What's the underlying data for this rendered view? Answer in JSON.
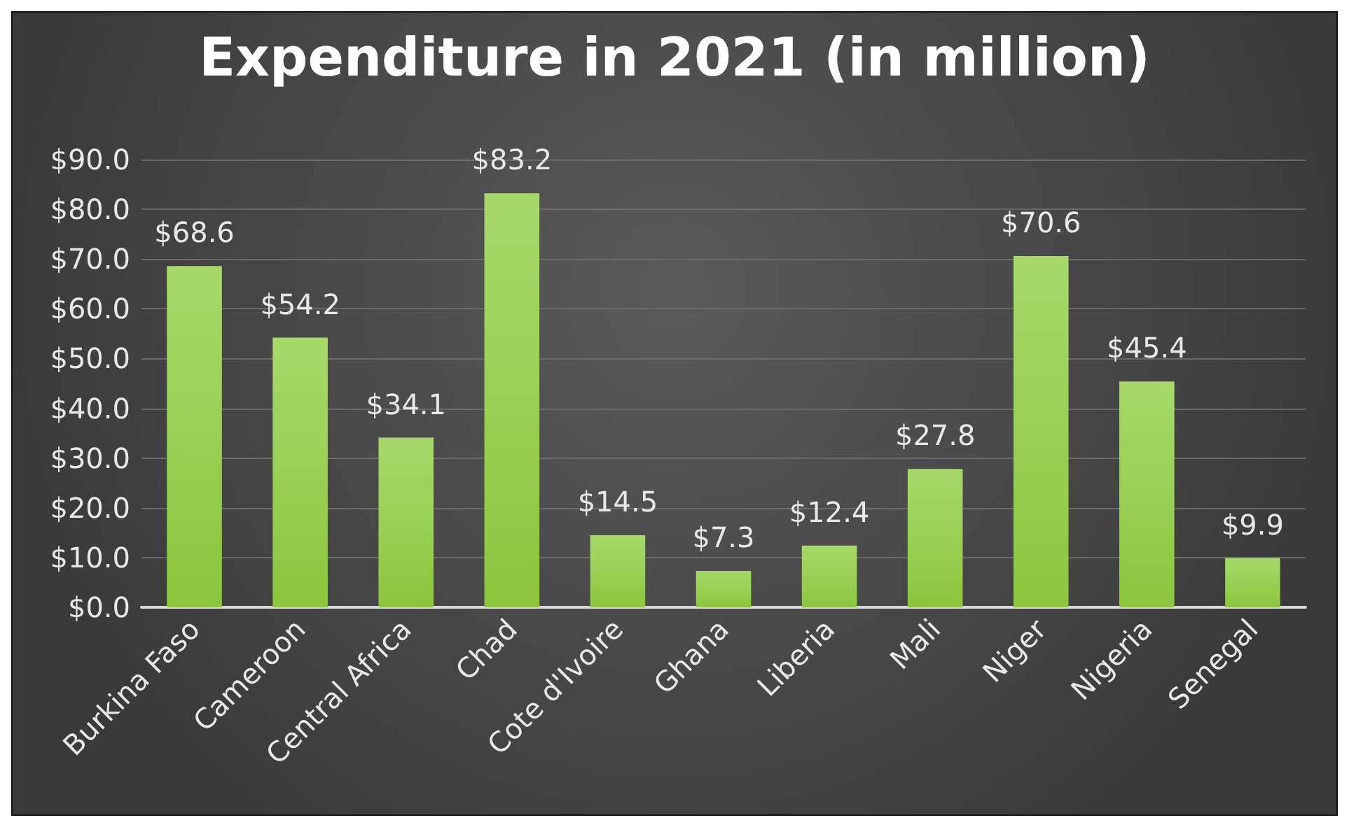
{
  "chart_data": {
    "type": "bar",
    "title": "Expenditure in 2021 (in million)",
    "categories": [
      "Burkina Faso",
      "Cameroon",
      "Central Africa",
      "Chad",
      "Cote d'Ivoire",
      "Ghana",
      "Liberia",
      "Mali",
      "Niger",
      "Nigeria",
      "Senegal"
    ],
    "values": [
      68.6,
      54.2,
      34.1,
      83.2,
      14.5,
      7.3,
      12.4,
      27.8,
      70.6,
      45.4,
      9.9
    ],
    "value_labels": [
      "$68.6",
      "$54.2",
      "$34.1",
      "$83.2",
      "$14.5",
      "$7.3",
      "$12.4",
      "$27.8",
      "$70.6",
      "$45.4",
      "$9.9"
    ],
    "color": "#8cc63e",
    "ylim": [
      0,
      90
    ],
    "yticks": [
      {
        "value": 0,
        "label": "$0.0"
      },
      {
        "value": 10,
        "label": "$10.0"
      },
      {
        "value": 20,
        "label": "$20.0"
      },
      {
        "value": 30,
        "label": "$30.0"
      },
      {
        "value": 40,
        "label": "$40.0"
      },
      {
        "value": 50,
        "label": "$50.0"
      },
      {
        "value": 60,
        "label": "$60.0"
      },
      {
        "value": 70,
        "label": "$70.0"
      },
      {
        "value": 80,
        "label": "$80.0"
      },
      {
        "value": 90,
        "label": "$90.0"
      }
    ],
    "grid": "y"
  }
}
